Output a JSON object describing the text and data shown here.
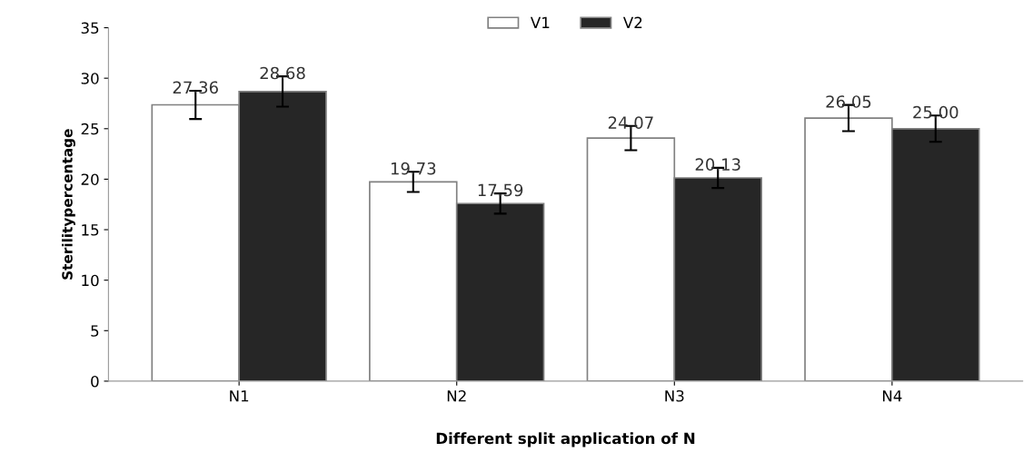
{
  "chart_data": {
    "type": "bar",
    "xlabel": "Different split application of N",
    "ylabel": "Sterilitypercentage",
    "categories": [
      "N1",
      "N2",
      "N3",
      "N4"
    ],
    "series": [
      {
        "name": "V1",
        "color": "#ffffff",
        "values": [
          27.36,
          19.73,
          24.07,
          26.05
        ],
        "errors": [
          1.4,
          1.0,
          1.2,
          1.3
        ]
      },
      {
        "name": "V2",
        "color": "#262626",
        "values": [
          28.68,
          17.59,
          20.13,
          25.0
        ],
        "value_labels": [
          "28.68",
          "17.59",
          "20.13",
          "25.00"
        ],
        "errors": [
          1.5,
          1.0,
          1.0,
          1.3
        ]
      }
    ],
    "value_labels": [
      "27.36",
      "19.73",
      "24.07",
      "26.05"
    ],
    "ylim": [
      0,
      35
    ],
    "yticks": [
      0,
      5,
      10,
      15,
      20,
      25,
      30,
      35
    ],
    "grid": false,
    "legend": "top"
  }
}
